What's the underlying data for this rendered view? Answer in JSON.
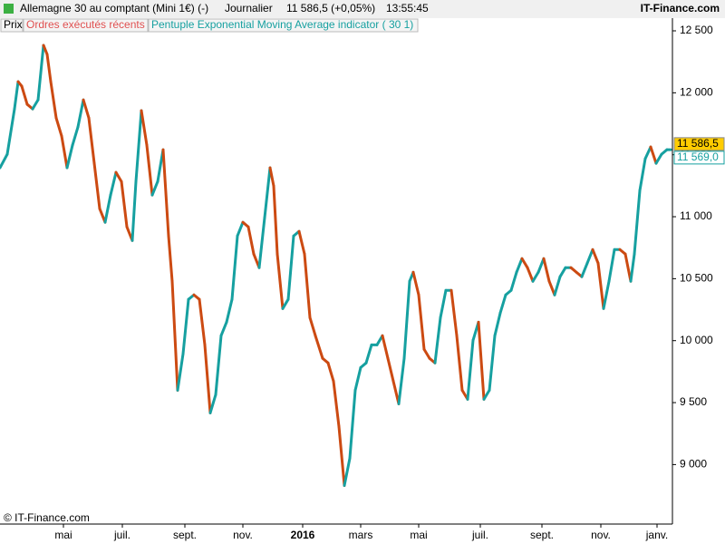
{
  "header": {
    "title": "Allemagne 30 au comptant (Mini 1€) (-)",
    "period": "Journalier",
    "quote": "11 586,5 (+0,05%)",
    "time": "13:55:45",
    "brand": "IT-Finance.com"
  },
  "legend": [
    "Prix",
    "Ordres exécutés récents"
  ],
  "copyright": "© IT-Finance.com",
  "chart_data": {
    "type": "line",
    "x": [
      0,
      8,
      16,
      20,
      24,
      30,
      36,
      42,
      48,
      52,
      56,
      62,
      68,
      74,
      80,
      86,
      92,
      98,
      104,
      110,
      116,
      122,
      128,
      134,
      140,
      146,
      150,
      156,
      162,
      168,
      174,
      180,
      186,
      190,
      196,
      202,
      208,
      214,
      220,
      226,
      232,
      238,
      244,
      250,
      256,
      262,
      268,
      274,
      280,
      286,
      292,
      298,
      302,
      306,
      312,
      318,
      324,
      330,
      336,
      342,
      348,
      356,
      362,
      368,
      374,
      380,
      386,
      392,
      398,
      404,
      410,
      416,
      422,
      428,
      434,
      440,
      446,
      452,
      456,
      462,
      468,
      474,
      480,
      486,
      492,
      498,
      504,
      510,
      516,
      522,
      528,
      534,
      540,
      546,
      552,
      558,
      564,
      570,
      576,
      582,
      588,
      594,
      600,
      606,
      612,
      618,
      624,
      630,
      636,
      642,
      648,
      654,
      660,
      666,
      672,
      678,
      684,
      690,
      696,
      700,
      706,
      712,
      718,
      724,
      730,
      736,
      740
    ],
    "series": [
      {
        "name": "Pentuple Exponential Moving Average indicator ( 30 1)",
        "color": "#16a0a0",
        "down_color": "#cc4a12",
        "values": [
          11395,
          11504,
          11870,
          12090,
          12053,
          11907,
          11870,
          11943,
          12383,
          12310,
          12090,
          11797,
          11651,
          11395,
          11577,
          11724,
          11943,
          11797,
          11431,
          11065,
          10955,
          11175,
          11358,
          11284,
          10918,
          10808,
          11284,
          11856,
          11577,
          11175,
          11284,
          11541,
          10845,
          10479,
          9600,
          9893,
          10333,
          10369,
          10333,
          9966,
          9417,
          9564,
          10040,
          10149,
          10333,
          10845,
          10955,
          10918,
          10699,
          10589,
          10992,
          11395,
          11248,
          10699,
          10259,
          10333,
          10845,
          10882,
          10699,
          10186,
          10040,
          9857,
          9820,
          9673,
          9307,
          8831,
          9051,
          9600,
          9783,
          9820,
          9966,
          9966,
          10040,
          9857,
          9673,
          9490,
          9857,
          10479,
          10552,
          10369,
          9930,
          9857,
          9820,
          10186,
          10406,
          10406,
          10040,
          9600,
          9527,
          10003,
          10149,
          9527,
          9600,
          10040,
          10223,
          10369,
          10406,
          10552,
          10662,
          10589,
          10479,
          10552,
          10662,
          10479,
          10369,
          10516,
          10589,
          10589,
          10552,
          10516,
          10625,
          10735,
          10625,
          10259,
          10479,
          10735,
          10735,
          10699,
          10479,
          10699,
          11211,
          11468,
          11563,
          11431,
          11504,
          11541,
          11541
        ]
      }
    ],
    "xlim": [
      0,
      742
    ],
    "xticks": [
      {
        "value": 70,
        "label": "mai"
      },
      {
        "value": 135,
        "label": "juil."
      },
      {
        "value": 204,
        "label": "sept."
      },
      {
        "value": 268,
        "label": "nov."
      },
      {
        "value": 334,
        "label": "2016"
      },
      {
        "value": 398,
        "label": "mars"
      },
      {
        "value": 462,
        "label": "mai"
      },
      {
        "value": 530,
        "label": "juil."
      },
      {
        "value": 598,
        "label": "sept."
      },
      {
        "value": 663,
        "label": "nov."
      },
      {
        "value": 725,
        "label": "janv."
      }
    ],
    "ylim": [
      8520,
      12500
    ],
    "yticks": [
      {
        "value": 12500,
        "label": "12 500"
      },
      {
        "value": 12000,
        "label": "12 000"
      },
      {
        "value": 11500,
        "label": "11 500"
      },
      {
        "value": 11000,
        "label": "11 000"
      },
      {
        "value": 10500,
        "label": "10 500"
      },
      {
        "value": 10000,
        "label": "10 000"
      },
      {
        "value": 9500,
        "label": "9 500"
      },
      {
        "value": 9000,
        "label": "9 000"
      }
    ],
    "last_labels": [
      {
        "value": 11586.5,
        "label": "11 586,5",
        "color": "#ffcc00"
      },
      {
        "value": 11569,
        "label": "11 569,0",
        "color": "#ffffff"
      }
    ]
  }
}
